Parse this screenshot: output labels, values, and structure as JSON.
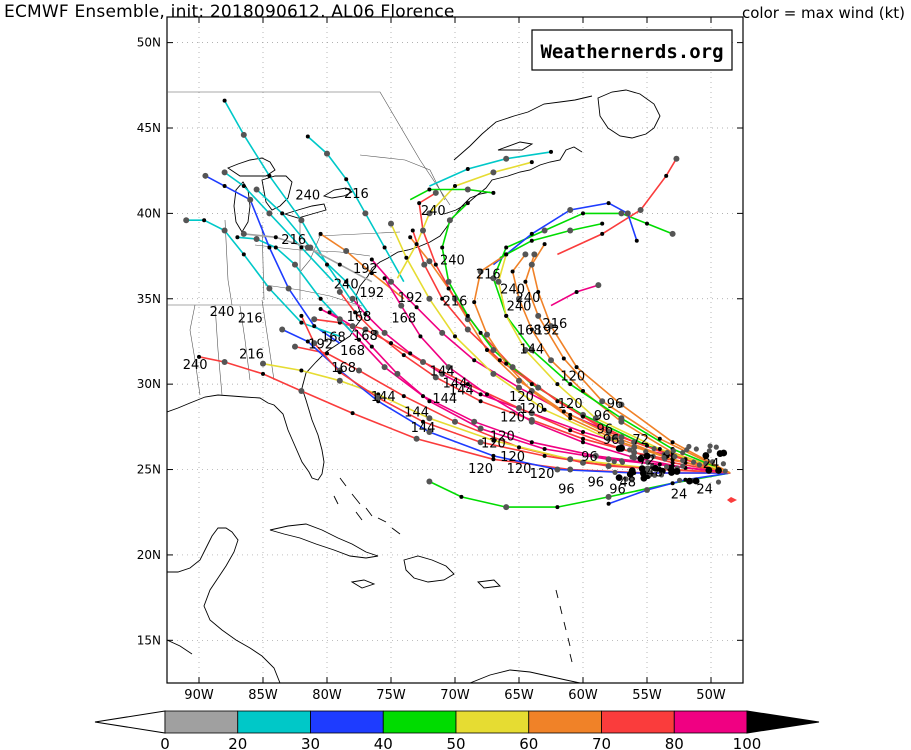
{
  "title": "ECMWF Ensemble, init: 2018090612, AL06 Florence",
  "legend_note": "color = max wind (kt)",
  "watermark": "Weathernerds.org",
  "axes": {
    "lat_labels": [
      "50N",
      "45N",
      "40N",
      "35N",
      "30N",
      "25N",
      "20N",
      "15N"
    ],
    "lat_values": [
      50,
      45,
      40,
      35,
      30,
      25,
      20,
      15
    ],
    "lon_labels": [
      "90W",
      "85W",
      "80W",
      "75W",
      "70W",
      "65W",
      "60W",
      "55W",
      "50W"
    ],
    "lon_values": [
      -90,
      -85,
      -80,
      -75,
      -70,
      -65,
      -60,
      -55,
      -50
    ],
    "lon_range": [
      -92.5,
      -47.5
    ],
    "lat_range": [
      12.5,
      51.5
    ]
  },
  "colorbar": {
    "ticks": [
      "0",
      "20",
      "30",
      "40",
      "50",
      "60",
      "70",
      "80",
      "100"
    ],
    "colors": [
      "#a0a0a0",
      "#00c8c8",
      "#1e3cff",
      "#00dc00",
      "#e6dc32",
      "#f08228",
      "#fa3c3c",
      "#f00082"
    ]
  },
  "colors": {
    "gray": "#a0a0a0",
    "cyan": "#00c8c8",
    "blue": "#1e3cff",
    "green": "#00dc00",
    "yellow": "#e6dc32",
    "orange": "#f08228",
    "red": "#fa3c3c",
    "magenta": "#f00082"
  },
  "forecast_hour_labels": [
    {
      "text": "240",
      "lon": -81.5,
      "lat": 40.8
    },
    {
      "text": "216",
      "lon": -77.7,
      "lat": 40.9
    },
    {
      "text": "240",
      "lon": -71.7,
      "lat": 39.9
    },
    {
      "text": "216",
      "lon": -82.6,
      "lat": 38.2
    },
    {
      "text": "240",
      "lon": -88.2,
      "lat": 34.0
    },
    {
      "text": "216",
      "lon": -86.0,
      "lat": 33.6
    },
    {
      "text": "216",
      "lon": -85.9,
      "lat": 31.5
    },
    {
      "text": "240",
      "lon": -90.3,
      "lat": 30.9
    },
    {
      "text": "192",
      "lon": -77.0,
      "lat": 36.5
    },
    {
      "text": "240",
      "lon": -78.5,
      "lat": 35.6
    },
    {
      "text": "192",
      "lon": -76.5,
      "lat": 35.1
    },
    {
      "text": "168",
      "lon": -77.5,
      "lat": 33.7
    },
    {
      "text": "168",
      "lon": -79.5,
      "lat": 32.5
    },
    {
      "text": "192",
      "lon": -80.5,
      "lat": 32.1
    },
    {
      "text": "168",
      "lon": -77.0,
      "lat": 32.6
    },
    {
      "text": "168",
      "lon": -78.0,
      "lat": 31.7
    },
    {
      "text": "168",
      "lon": -78.7,
      "lat": 30.7
    },
    {
      "text": "168",
      "lon": -74.0,
      "lat": 33.6
    },
    {
      "text": "192",
      "lon": -73.5,
      "lat": 34.8
    },
    {
      "text": "216",
      "lon": -70.0,
      "lat": 34.6
    },
    {
      "text": "240",
      "lon": -70.2,
      "lat": 37.0
    },
    {
      "text": "216",
      "lon": -67.4,
      "lat": 36.2
    },
    {
      "text": "240",
      "lon": -65.5,
      "lat": 35.3
    },
    {
      "text": "240",
      "lon": -64.3,
      "lat": 34.8
    },
    {
      "text": "240",
      "lon": -65.0,
      "lat": 34.3
    },
    {
      "text": "216",
      "lon": -62.2,
      "lat": 33.3
    },
    {
      "text": "168",
      "lon": -64.2,
      "lat": 32.9
    },
    {
      "text": "192",
      "lon": -62.8,
      "lat": 32.9
    },
    {
      "text": "144",
      "lon": -64.0,
      "lat": 31.8
    },
    {
      "text": "144",
      "lon": -71.0,
      "lat": 30.5
    },
    {
      "text": "144",
      "lon": -70.0,
      "lat": 29.8
    },
    {
      "text": "144",
      "lon": -69.5,
      "lat": 29.4
    },
    {
      "text": "144",
      "lon": -75.6,
      "lat": 29.0
    },
    {
      "text": "144",
      "lon": -70.8,
      "lat": 28.9
    },
    {
      "text": "144",
      "lon": -73.0,
      "lat": 28.1
    },
    {
      "text": "144",
      "lon": -72.5,
      "lat": 27.2
    },
    {
      "text": "120",
      "lon": -60.8,
      "lat": 30.2
    },
    {
      "text": "120",
      "lon": -64.8,
      "lat": 29.0
    },
    {
      "text": "120",
      "lon": -61.0,
      "lat": 28.6
    },
    {
      "text": "120",
      "lon": -64.0,
      "lat": 28.3
    },
    {
      "text": "120",
      "lon": -65.5,
      "lat": 27.8
    },
    {
      "text": "120",
      "lon": -66.3,
      "lat": 26.7
    },
    {
      "text": "120",
      "lon": -67.0,
      "lat": 26.3
    },
    {
      "text": "120",
      "lon": -65.5,
      "lat": 25.5
    },
    {
      "text": "120",
      "lon": -68.0,
      "lat": 24.8
    },
    {
      "text": "120",
      "lon": -65.0,
      "lat": 24.8
    },
    {
      "text": "120",
      "lon": -63.2,
      "lat": 24.5
    },
    {
      "text": "96",
      "lon": -57.5,
      "lat": 28.6
    },
    {
      "text": "96",
      "lon": -58.5,
      "lat": 27.9
    },
    {
      "text": "96",
      "lon": -58.3,
      "lat": 27.1
    },
    {
      "text": "96",
      "lon": -57.8,
      "lat": 26.5
    },
    {
      "text": "96",
      "lon": -59.5,
      "lat": 25.5
    },
    {
      "text": "96",
      "lon": -59.0,
      "lat": 24.0
    },
    {
      "text": "96",
      "lon": -61.3,
      "lat": 23.6
    },
    {
      "text": "96",
      "lon": -57.3,
      "lat": 23.6
    },
    {
      "text": "72",
      "lon": -55.5,
      "lat": 26.5
    },
    {
      "text": "72",
      "lon": -55.0,
      "lat": 25.3
    },
    {
      "text": "48",
      "lon": -54.4,
      "lat": 24.6
    },
    {
      "text": "48",
      "lon": -56.5,
      "lat": 24.0
    },
    {
      "text": "24",
      "lon": -52.5,
      "lat": 23.3
    },
    {
      "text": "24",
      "lon": -50.5,
      "lat": 23.6
    },
    {
      "text": "24",
      "lon": -50.0,
      "lat": 25.1
    }
  ]
}
